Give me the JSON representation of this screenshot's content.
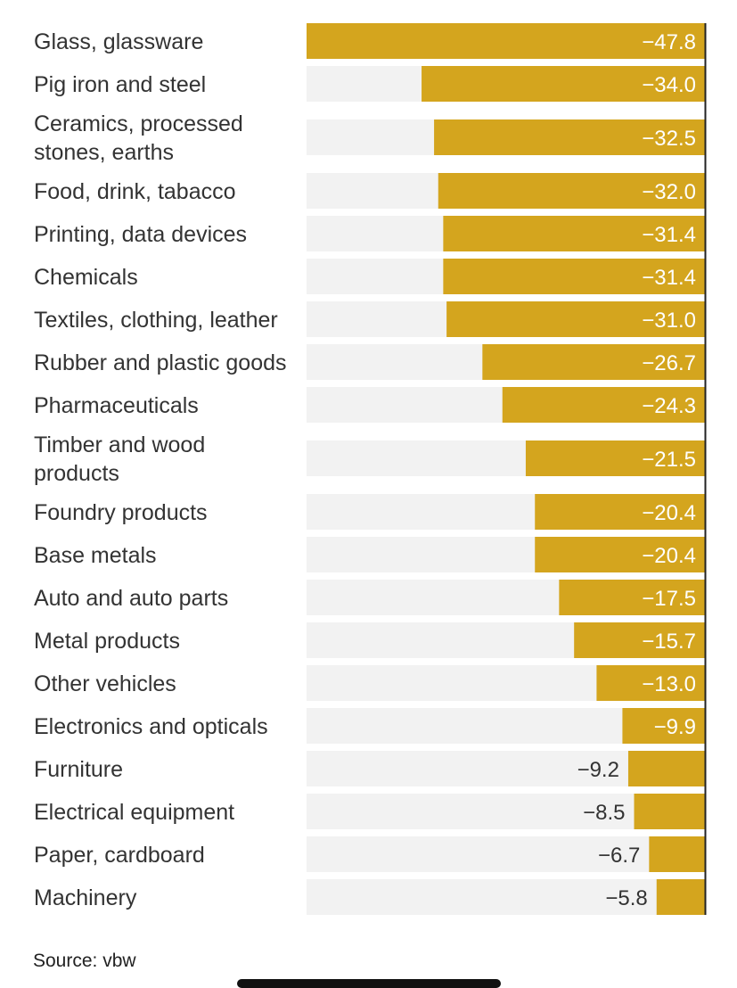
{
  "chart_data": {
    "type": "bar",
    "orientation": "horizontal",
    "categories": [
      [
        "Glass, glassware"
      ],
      [
        "Pig iron and steel"
      ],
      [
        "Ceramics, processed",
        "stones, earths"
      ],
      [
        "Food, drink, tabacco"
      ],
      [
        "Printing, data devices"
      ],
      [
        "Chemicals"
      ],
      [
        "Textiles, clothing, leather"
      ],
      [
        "Rubber and plastic goods"
      ],
      [
        "Pharmaceuticals"
      ],
      [
        "Timber and wood",
        "products"
      ],
      [
        "Foundry products"
      ],
      [
        "Base metals"
      ],
      [
        "Auto and auto parts"
      ],
      [
        "Metal products"
      ],
      [
        "Other vehicles"
      ],
      [
        "Electronics and opticals"
      ],
      [
        "Furniture"
      ],
      [
        "Electrical equipment"
      ],
      [
        "Paper, cardboard"
      ],
      [
        "Machinery"
      ]
    ],
    "values": [
      -47.8,
      -34.0,
      -32.5,
      -32.0,
      -31.4,
      -31.4,
      -31.0,
      -26.7,
      -24.3,
      -21.5,
      -20.4,
      -20.4,
      -17.5,
      -15.7,
      -13.0,
      -9.9,
      -9.2,
      -8.5,
      -6.7,
      -5.8
    ],
    "value_labels": [
      "−47.8",
      "−34.0",
      "−32.5",
      "−32.0",
      "−31.4",
      "−31.4",
      "−31.0",
      "−26.7",
      "−24.3",
      "−21.5",
      "−20.4",
      "−20.4",
      "−17.5",
      "−15.7",
      "−13.0",
      "−9.9",
      "−9.2",
      "−8.5",
      "−6.7",
      "−5.8"
    ],
    "xlim": [
      -47.8,
      0
    ],
    "title": "",
    "xlabel": "",
    "ylabel": "",
    "grid": false,
    "colors": {
      "bar": "#D4A51E",
      "track": "#F2F2F2",
      "axis": "#222222",
      "label_inside": "#FFFFFF",
      "label_outside": "#333333",
      "category_text": "#333333"
    }
  },
  "source": "Source: vbw"
}
